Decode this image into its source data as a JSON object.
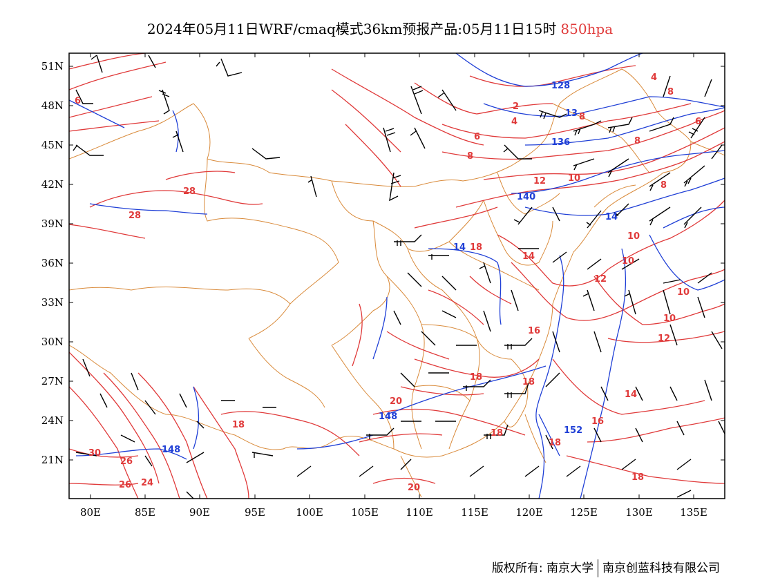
{
  "title": {
    "main": "2024年05月11日WRF/cmaq模式36km预报产品:05月11日15时",
    "level": "850hpa",
    "level_color": "#e03a3a"
  },
  "axes": {
    "lat_labels": [
      "51N",
      "48N",
      "45N",
      "42N",
      "39N",
      "36N",
      "33N",
      "30N",
      "27N",
      "24N",
      "21N"
    ],
    "lon_labels": [
      "80E",
      "85E",
      "90E",
      "95E",
      "100E",
      "105E",
      "110E",
      "115E",
      "120E",
      "125E",
      "130E",
      "135E"
    ]
  },
  "colors": {
    "temperature_contour": "#e03a3a",
    "height_contour": "#1f3fd6",
    "boundary": "#d98a3a",
    "wind_barb": "#000000"
  },
  "temperature_labels": [
    "6",
    "28",
    "28",
    "2",
    "4",
    "6",
    "8",
    "8",
    "4",
    "8",
    "6",
    "8",
    "8",
    "10",
    "12",
    "18",
    "14",
    "12",
    "10",
    "10",
    "10",
    "10",
    "12",
    "16",
    "18",
    "18",
    "20",
    "18",
    "18",
    "14",
    "16",
    "18",
    "20",
    "18",
    "30",
    "26",
    "24",
    "26"
  ],
  "height_labels": [
    "128",
    "13",
    "136",
    "140",
    "14",
    "14",
    "148",
    "148",
    "152"
  ],
  "footer": {
    "left": "版权所有: 南京大学",
    "right": "南京创蓝科技有限公司"
  }
}
